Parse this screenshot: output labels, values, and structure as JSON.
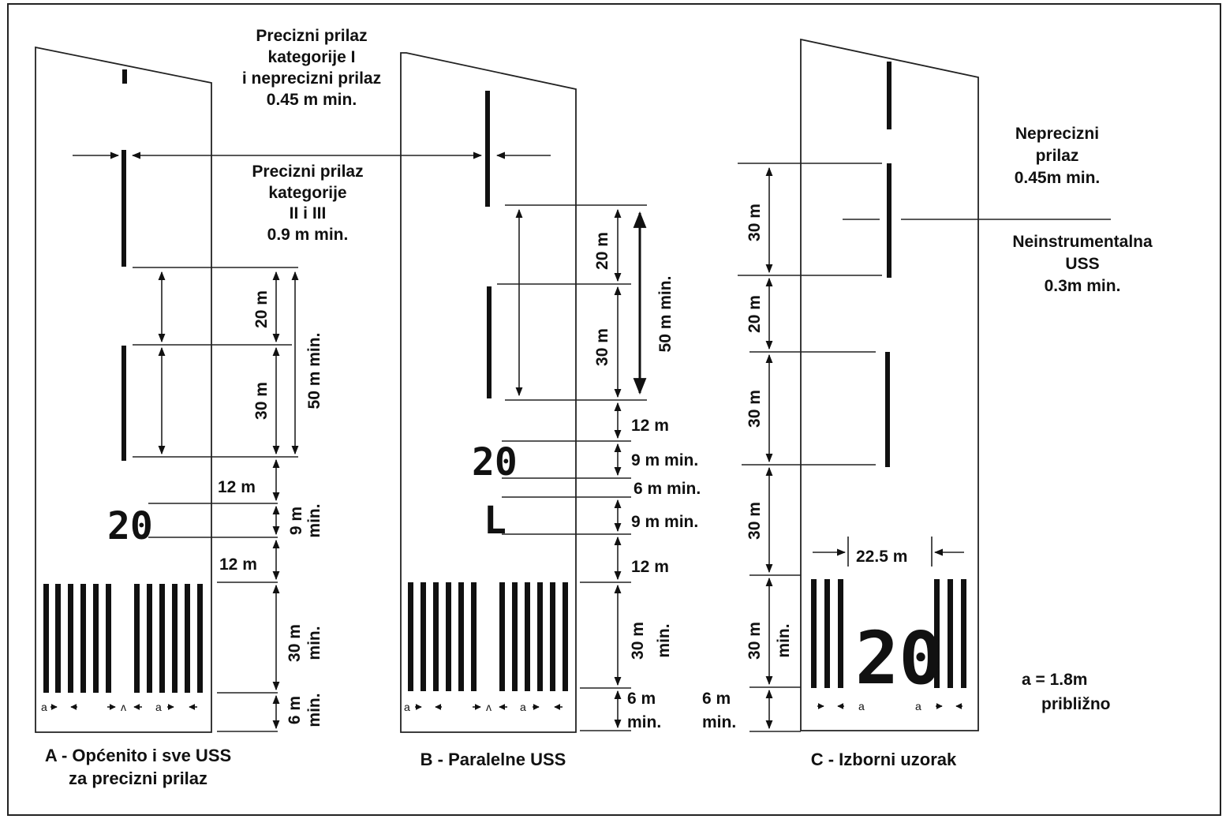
{
  "labels": {
    "top_note": [
      "Precizni prilaz",
      "kategorije I",
      "i neprecizni prilaz",
      "0.45 m min."
    ],
    "mid_note": [
      "Precizni prilaz",
      "kategorije",
      "II i III",
      "0.9 m min."
    ],
    "right_note1": [
      "Neprecizni",
      "prilaz",
      "0.45m min."
    ],
    "right_note2": [
      "Neinstrumentalna",
      "USS",
      "0.3m min."
    ],
    "a_note": [
      "a = 1.8m",
      "približno"
    ]
  },
  "panel_a": {
    "caption": [
      "A - Općenito i sve USS",
      "za precizni prilaz"
    ],
    "dims": {
      "d20": "20 m",
      "d30": "30 m",
      "d50": "50 m min.",
      "d12a": "12 m",
      "d9": "9 m",
      "d9min": "min.",
      "d12b": "12 m",
      "d30b": "30 m",
      "d30bmin": "min.",
      "d6": "6 m",
      "d6min": "min."
    },
    "number": "20",
    "stripe_labels": [
      "a",
      "ʌ",
      "a"
    ]
  },
  "panel_b": {
    "caption": [
      "B - Paralelne USS"
    ],
    "dims": {
      "d20": "20 m",
      "d30": "30 m",
      "d50": "50 m min.",
      "d12a": "12 m",
      "d9a": "9 m min.",
      "d6a": "6 m min.",
      "d9b": "9 m min.",
      "d12b": "12 m",
      "d30b": "30 m",
      "d30bmin": "min.",
      "d6b": "6 m",
      "d6bmin": "min."
    },
    "number": "20",
    "letter": "L",
    "stripe_labels": [
      "a",
      "ʌ",
      "a"
    ]
  },
  "panel_c": {
    "caption": [
      "C - Izborni uzorak"
    ],
    "dims": {
      "d30a": "30 m",
      "d20": "20 m",
      "d30b": "30 m",
      "d30c": "30 m",
      "d30d": "30 m",
      "d30dmin": "min.",
      "d6": "6 m",
      "d6min": "min.",
      "d225": "22.5 m"
    },
    "number": "20",
    "stripe_labels": [
      "a",
      "a"
    ]
  }
}
